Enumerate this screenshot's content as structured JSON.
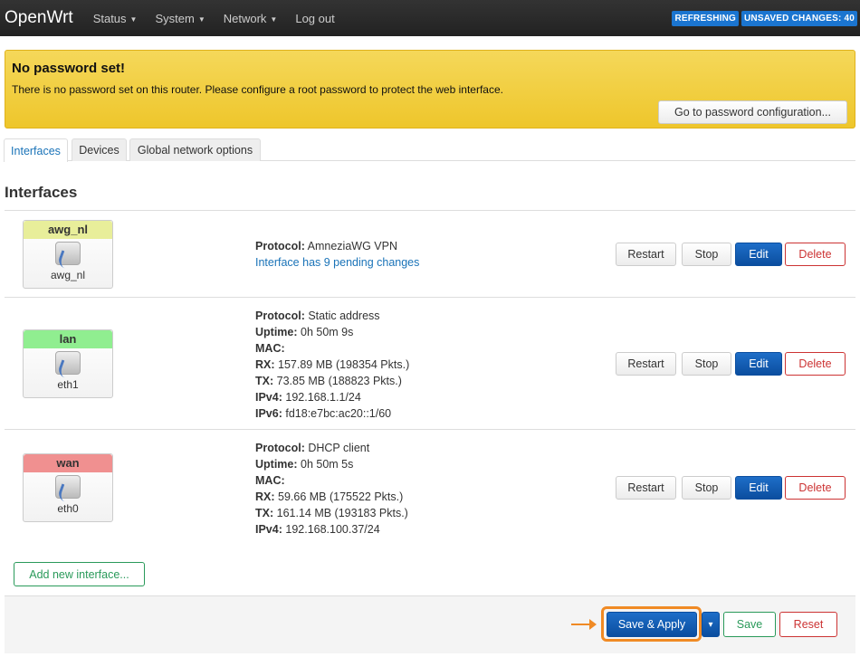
{
  "nav": {
    "brand": "OpenWrt",
    "menus": [
      "Status",
      "System",
      "Network"
    ],
    "logout": "Log out",
    "badges": {
      "refreshing": "REFRESHING",
      "unsaved": "UNSAVED CHANGES: 40"
    }
  },
  "alert": {
    "title": "No password set!",
    "text": "There is no password set on this router. Please configure a root password to protect the web interface.",
    "button": "Go to password configuration..."
  },
  "tabs": [
    "Interfaces",
    "Devices",
    "Global network options"
  ],
  "section_title": "Interfaces",
  "interfaces": [
    {
      "name": "awg_nl",
      "device": "awg_nl",
      "color": "#e8ee9a",
      "protocol": "AmneziaWG VPN",
      "pending": "Interface has 9 pending changes"
    },
    {
      "name": "lan",
      "device": "eth1",
      "color": "#90ee90",
      "protocol": "Static address",
      "uptime": "0h 50m 9s",
      "mac": "",
      "rx": "157.89 MB (198354 Pkts.)",
      "tx": "73.85 MB (188823 Pkts.)",
      "ipv4": "192.168.1.1/24",
      "ipv6": "fd18:e7bc:ac20::1/60"
    },
    {
      "name": "wan",
      "device": "eth0",
      "color": "#f09090",
      "protocol": "DHCP client",
      "uptime": "0h 50m 5s",
      "mac": "",
      "rx": "59.66 MB (175522 Pkts.)",
      "tx": "161.14 MB (193183 Pkts.)",
      "ipv4": "192.168.100.37/24"
    }
  ],
  "labels": {
    "protocol": "Protocol:",
    "uptime": "Uptime:",
    "mac": "MAC:",
    "rx": "RX:",
    "tx": "TX:",
    "ipv4": "IPv4:",
    "ipv6": "IPv6:"
  },
  "actions": {
    "restart": "Restart",
    "stop": "Stop",
    "edit": "Edit",
    "delete": "Delete"
  },
  "add_interface": "Add new interface...",
  "footer": {
    "save_apply": "Save & Apply",
    "dropdown": "▾",
    "save": "Save",
    "reset": "Reset"
  }
}
